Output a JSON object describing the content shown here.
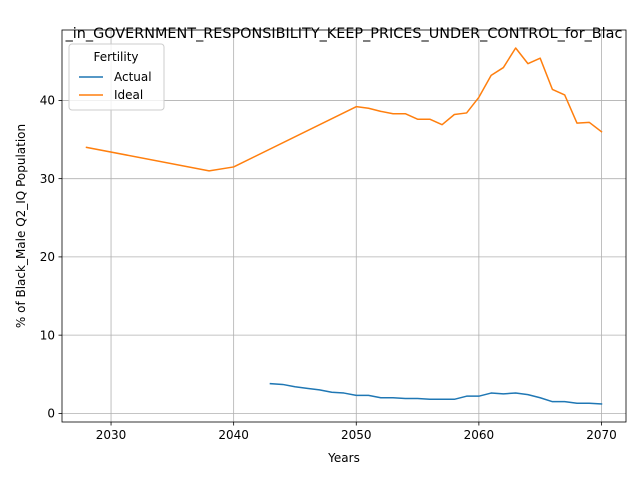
{
  "chart_data": {
    "type": "line",
    "title": "_in_GOVERNMENT_RESPONSIBILITY_KEEP_PRICES_UNDER_CONTROL_for_Blac",
    "xlabel": "Years",
    "ylabel": "% of Black_Male Q2_IQ Population",
    "xlim": [
      2026,
      2072
    ],
    "ylim": [
      -1.1,
      49.0
    ],
    "xticks": [
      2030,
      2040,
      2050,
      2060,
      2070
    ],
    "yticks": [
      0,
      10,
      20,
      30,
      40
    ],
    "grid": true,
    "legend": {
      "title": "Fertility",
      "placement": "upper-left"
    },
    "series": [
      {
        "name": "Actual",
        "color": "#1f77b4",
        "x": [
          2043,
          2044,
          2045,
          2046,
          2047,
          2048,
          2049,
          2050,
          2051,
          2052,
          2053,
          2054,
          2055,
          2056,
          2057,
          2058,
          2059,
          2060,
          2061,
          2062,
          2063,
          2064,
          2065,
          2066,
          2067,
          2068,
          2069,
          2070
        ],
        "y": [
          3.8,
          3.7,
          3.4,
          3.2,
          3.0,
          2.7,
          2.6,
          2.3,
          2.3,
          2.0,
          2.0,
          1.9,
          1.9,
          1.8,
          1.8,
          1.8,
          2.2,
          2.2,
          2.6,
          2.5,
          2.6,
          2.4,
          2.0,
          1.5,
          1.5,
          1.3,
          1.3,
          1.2
        ]
      },
      {
        "name": "Ideal",
        "color": "#ff7f0e",
        "x": [
          2028,
          2038,
          2040,
          2050,
          2051,
          2052,
          2053,
          2054,
          2055,
          2056,
          2057,
          2058,
          2059,
          2060,
          2061,
          2062,
          2063,
          2064,
          2065,
          2066,
          2067,
          2068,
          2069,
          2070
        ],
        "y": [
          34.0,
          31.0,
          31.5,
          39.2,
          39.0,
          38.6,
          38.3,
          38.3,
          37.6,
          37.6,
          36.9,
          38.2,
          38.4,
          40.4,
          43.2,
          44.2,
          46.7,
          44.7,
          45.4,
          41.4,
          40.7,
          37.1,
          37.2,
          36.0
        ]
      }
    ]
  }
}
